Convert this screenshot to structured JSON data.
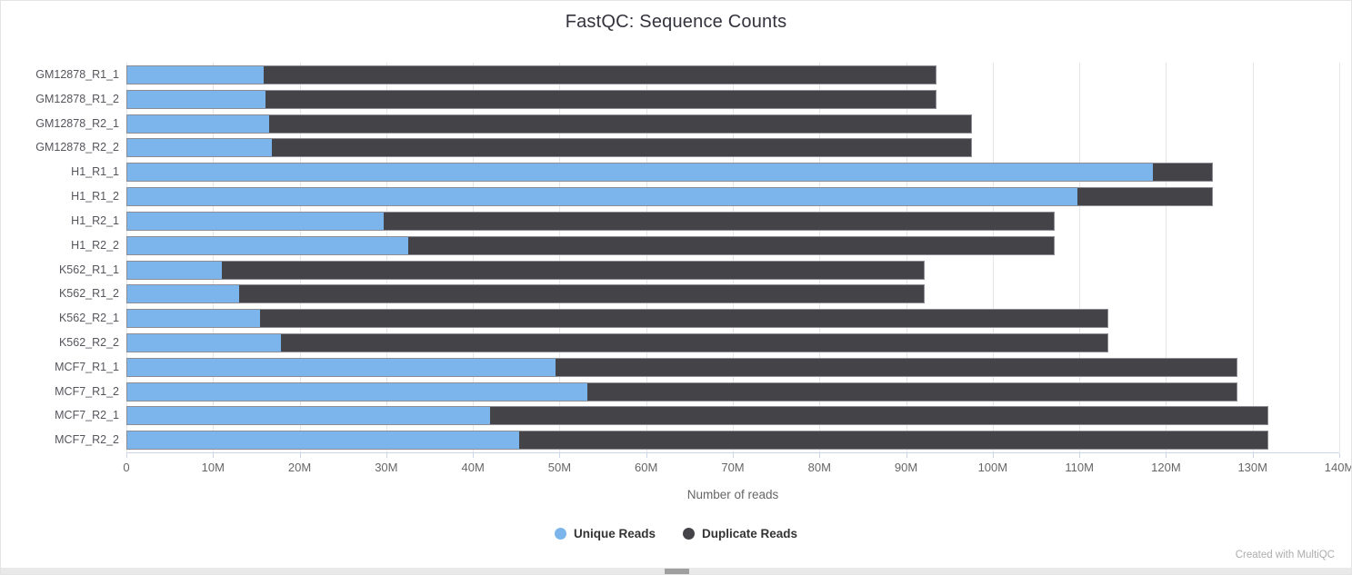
{
  "page": {
    "footer_credit": "Created with MultiQC"
  },
  "chart_data": {
    "type": "bar",
    "orientation": "horizontal",
    "stacked": true,
    "title": "FastQC: Sequence Counts",
    "xlabel": "Number of reads",
    "units": "millions of reads",
    "xlim": [
      0,
      140
    ],
    "xtick_step": 10,
    "xtick_labels": [
      "0",
      "10M",
      "20M",
      "30M",
      "40M",
      "50M",
      "60M",
      "70M",
      "80M",
      "90M",
      "100M",
      "110M",
      "120M",
      "130M",
      "140M"
    ],
    "grid": true,
    "legend_position": "bottom",
    "categories": [
      "GM12878_R1_1",
      "GM12878_R1_2",
      "GM12878_R2_1",
      "GM12878_R2_2",
      "H1_R1_1",
      "H1_R1_2",
      "H1_R2_1",
      "H1_R2_2",
      "K562_R1_1",
      "K562_R1_2",
      "K562_R2_1",
      "K562_R2_2",
      "MCF7_R1_1",
      "MCF7_R1_2",
      "MCF7_R2_1",
      "MCF7_R2_2"
    ],
    "series": [
      {
        "name": "Unique Reads",
        "color": "#7cb5ec",
        "values": [
          15.8,
          16.0,
          16.4,
          16.7,
          118.6,
          109.9,
          29.7,
          32.5,
          10.9,
          12.9,
          15.4,
          17.8,
          49.5,
          53.2,
          41.9,
          45.3
        ]
      },
      {
        "name": "Duplicate Reads",
        "color": "#434348",
        "values": [
          77.7,
          77.5,
          81.2,
          80.9,
          6.8,
          15.5,
          77.4,
          74.6,
          81.2,
          79.2,
          97.9,
          95.5,
          78.7,
          75.0,
          89.9,
          86.5
        ]
      }
    ]
  }
}
